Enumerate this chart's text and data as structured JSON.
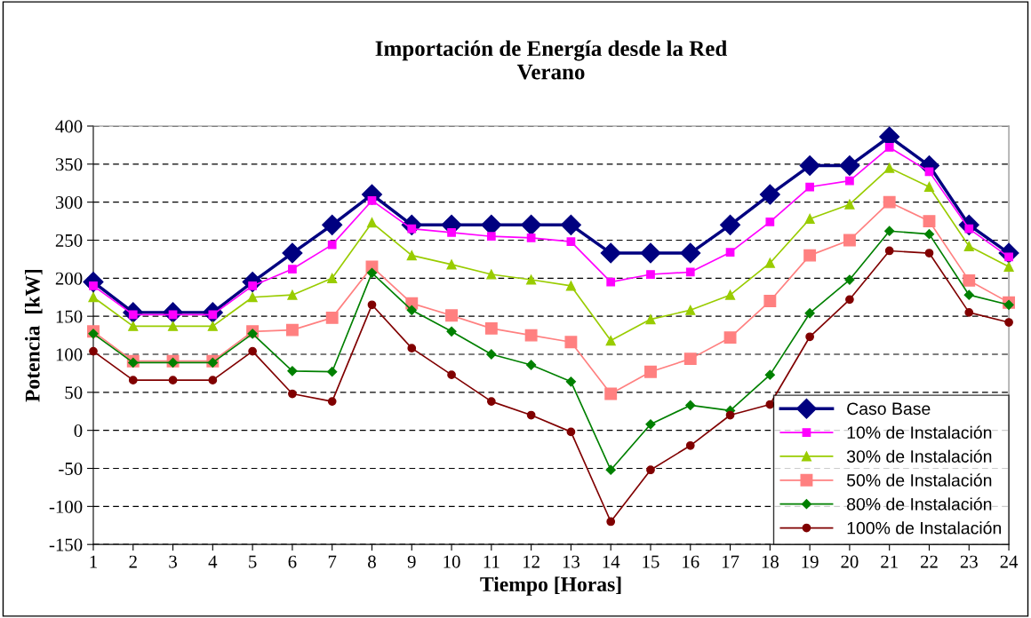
{
  "chart_data": {
    "type": "line",
    "title": "Importación de Energía desde la Red\nVerano",
    "xlabel": "Tiempo [Horas]",
    "ylabel": "Potencia  [kW]",
    "x": [
      1,
      2,
      3,
      4,
      5,
      6,
      7,
      8,
      9,
      10,
      11,
      12,
      13,
      14,
      15,
      16,
      17,
      18,
      19,
      20,
      21,
      22,
      23,
      24
    ],
    "xlim": [
      1,
      24
    ],
    "xticks": [
      1,
      2,
      3,
      4,
      5,
      6,
      7,
      8,
      9,
      10,
      11,
      12,
      13,
      14,
      15,
      16,
      17,
      18,
      19,
      20,
      21,
      22,
      23,
      24
    ],
    "ylim": [
      -150,
      400
    ],
    "yticks": [
      -150,
      -100,
      -50,
      0,
      50,
      100,
      150,
      200,
      250,
      300,
      350,
      400
    ],
    "grid": "y",
    "legend": "bottom right",
    "line_style": "solid",
    "series": [
      {
        "name": "Caso Base",
        "color": "#000080",
        "marker": "diamond",
        "values": [
          195,
          155,
          155,
          155,
          195,
          233,
          270,
          310,
          270,
          270,
          270,
          270,
          270,
          233,
          233,
          233,
          270,
          310,
          348,
          348,
          386,
          348,
          270,
          233
        ]
      },
      {
        "name": "10% de Instalación",
        "color": "#ff00ff",
        "marker": "square",
        "values": [
          190,
          152,
          152,
          152,
          190,
          212,
          244,
          302,
          265,
          260,
          255,
          253,
          248,
          195,
          205,
          208,
          234,
          274,
          320,
          328,
          372,
          340,
          265,
          228
        ]
      },
      {
        "name": "30% de Instalación",
        "color": "#99cc00",
        "marker": "triangle",
        "values": [
          175,
          137,
          137,
          137,
          175,
          178,
          200,
          273,
          230,
          218,
          205,
          198,
          190,
          118,
          146,
          158,
          178,
          220,
          278,
          297,
          345,
          320,
          242,
          215
        ]
      },
      {
        "name": "50% de Instalación",
        "color": "#ff8080",
        "marker": "square",
        "values": [
          130,
          91,
          91,
          91,
          130,
          132,
          148,
          215,
          167,
          151,
          134,
          125,
          116,
          48,
          77,
          94,
          122,
          170,
          230,
          250,
          300,
          275,
          197,
          168
        ]
      },
      {
        "name": "80% de Instalación",
        "color": "#008000",
        "marker": "diamond",
        "values": [
          127,
          89,
          89,
          89,
          127,
          78,
          77,
          207,
          158,
          130,
          100,
          86,
          64,
          -52,
          8,
          33,
          26,
          73,
          154,
          198,
          262,
          258,
          178,
          165
        ]
      },
      {
        "name": "100% de Instalación",
        "color": "#800000",
        "marker": "circle",
        "values": [
          104,
          66,
          66,
          66,
          104,
          48,
          38,
          165,
          108,
          73,
          38,
          20,
          -2,
          -120,
          -52,
          -20,
          20,
          34,
          123,
          172,
          236,
          233,
          155,
          142
        ]
      }
    ]
  }
}
